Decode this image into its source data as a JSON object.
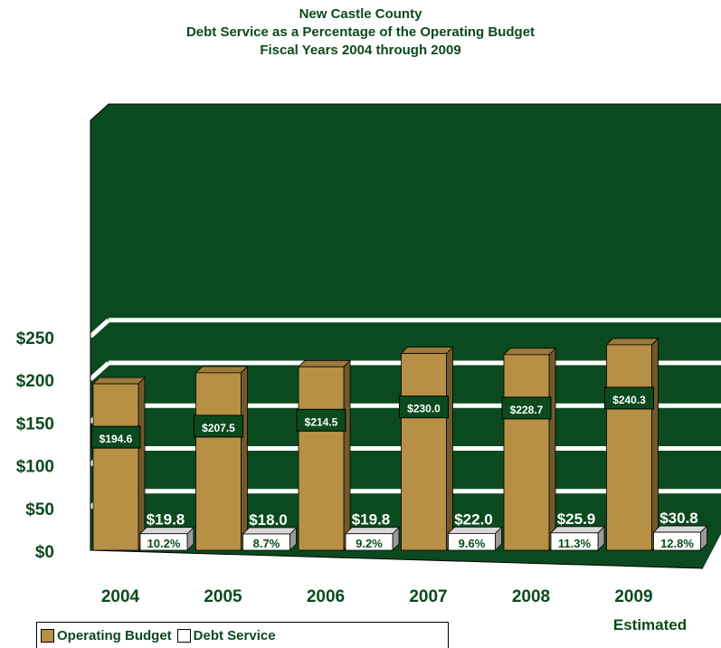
{
  "chart_data": {
    "type": "bar",
    "title": "New Castle County",
    "subtitle_lines": [
      "Debt Service as a Percentage of the Operating Budget",
      "Fiscal Years 2004 through 2009"
    ],
    "categories": [
      "2004",
      "2005",
      "2006",
      "2007",
      "2008",
      "2009"
    ],
    "category_note": {
      "category": "2009",
      "text": "Estimated"
    },
    "yticks": [
      "$0",
      "$50",
      "$100",
      "$150",
      "$200",
      "$250"
    ],
    "ylim": [
      0,
      250
    ],
    "grid": true,
    "legend_position": "bottom-left",
    "series": [
      {
        "name": "Operating Budget",
        "values": [
          194.6,
          207.5,
          214.5,
          230.0,
          228.7,
          240.3
        ],
        "labels": [
          "$194.6",
          "$207.5",
          "$214.5",
          "$230.0",
          "$228.7",
          "$240.3"
        ],
        "color": "#b79046"
      },
      {
        "name": "Debt Service",
        "values": [
          19.8,
          18.0,
          19.8,
          22.0,
          25.9,
          30.8
        ],
        "labels": [
          "$19.8",
          "$18.0",
          "$19.8",
          "$22.0",
          "$25.9",
          "$30.8"
        ],
        "percent_labels": [
          "10.2%",
          "8.7%",
          "9.2%",
          "9.6%",
          "11.3%",
          "12.8%"
        ],
        "color": "#ffffff"
      }
    ],
    "colors": {
      "wall": "#0b4a1e",
      "floor": "#0b4a1e",
      "gridline": "#ffffff",
      "text": "#0b4a1e"
    }
  }
}
